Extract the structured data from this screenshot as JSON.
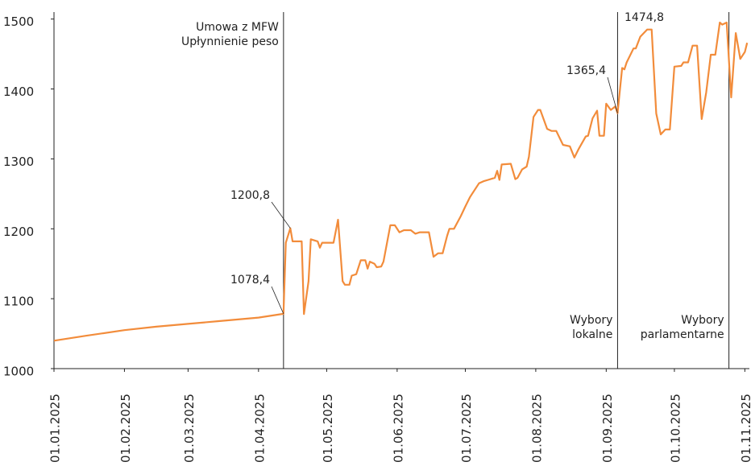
{
  "chart_data": {
    "type": "line",
    "color": "#f28c3b",
    "xlim": [
      "2025-01-01",
      "2025-11-03"
    ],
    "ylim": [
      1000,
      1510
    ],
    "yticks": [
      1000,
      1100,
      1200,
      1300,
      1400,
      1500
    ],
    "xticks": [
      {
        "value": "2025-01-01",
        "label": "01.01.2025"
      },
      {
        "value": "2025-02-01",
        "label": "01.02.2025"
      },
      {
        "value": "2025-03-01",
        "label": "01.03.2025"
      },
      {
        "value": "2025-04-01",
        "label": "01.04.2025"
      },
      {
        "value": "2025-05-01",
        "label": "01.05.2025"
      },
      {
        "value": "2025-06-01",
        "label": "01.06.2025"
      },
      {
        "value": "2025-07-01",
        "label": "01.07.2025"
      },
      {
        "value": "2025-08-01",
        "label": "01.08.2025"
      },
      {
        "value": "2025-09-01",
        "label": "01.09.2025"
      },
      {
        "value": "2025-10-01",
        "label": "01.10.2025"
      },
      {
        "value": "2025-11-01",
        "label": "01.11.2025"
      }
    ],
    "x": [
      "2025-01-01",
      "2025-01-15",
      "2025-02-01",
      "2025-02-15",
      "2025-03-01",
      "2025-03-15",
      "2025-04-01",
      "2025-04-12",
      "2025-04-13",
      "2025-04-15",
      "2025-04-16",
      "2025-04-20",
      "2025-04-21",
      "2025-04-23",
      "2025-04-24",
      "2025-04-27",
      "2025-04-28",
      "2025-04-29",
      "2025-05-04",
      "2025-05-06",
      "2025-05-08",
      "2025-05-09",
      "2025-05-11",
      "2025-05-12",
      "2025-05-14",
      "2025-05-16",
      "2025-05-18",
      "2025-05-19",
      "2025-05-20",
      "2025-05-22",
      "2025-05-23",
      "2025-05-25",
      "2025-05-26",
      "2025-05-29",
      "2025-05-31",
      "2025-06-02",
      "2025-06-04",
      "2025-06-07",
      "2025-06-09",
      "2025-06-11",
      "2025-06-15",
      "2025-06-17",
      "2025-06-19",
      "2025-06-21",
      "2025-06-23",
      "2025-06-24",
      "2025-06-26",
      "2025-06-29",
      "2025-07-01",
      "2025-07-03",
      "2025-07-04",
      "2025-07-07",
      "2025-07-09",
      "2025-07-11",
      "2025-07-14",
      "2025-07-15",
      "2025-07-16",
      "2025-07-17",
      "2025-07-21",
      "2025-07-23",
      "2025-07-24",
      "2025-07-26",
      "2025-07-28",
      "2025-07-29",
      "2025-07-31",
      "2025-08-02",
      "2025-08-03",
      "2025-08-06",
      "2025-08-08",
      "2025-08-10",
      "2025-08-13",
      "2025-08-16",
      "2025-08-18",
      "2025-08-20",
      "2025-08-23",
      "2025-08-24",
      "2025-08-26",
      "2025-08-28",
      "2025-08-29",
      "2025-08-31",
      "2025-09-01",
      "2025-09-03",
      "2025-09-05",
      "2025-09-06",
      "2025-09-08",
      "2025-09-09",
      "2025-09-10",
      "2025-09-13",
      "2025-09-14",
      "2025-09-16",
      "2025-09-19",
      "2025-09-21",
      "2025-09-23",
      "2025-09-25",
      "2025-09-27",
      "2025-09-29",
      "2025-10-01",
      "2025-10-04",
      "2025-10-05",
      "2025-10-07",
      "2025-10-09",
      "2025-10-11",
      "2025-10-13",
      "2025-10-15",
      "2025-10-17",
      "2025-10-19",
      "2025-10-21",
      "2025-10-22",
      "2025-10-24",
      "2025-10-26",
      "2025-10-28",
      "2025-10-30",
      "2025-11-01",
      "2025-11-02"
    ],
    "values": [
      1040,
      1047,
      1055,
      1060,
      1064,
      1068,
      1073,
      1078.4,
      1180,
      1200.8,
      1182,
      1182,
      1078,
      1125,
      1185,
      1182,
      1173,
      1180,
      1180,
      1213,
      1125,
      1120,
      1120,
      1133,
      1135,
      1155,
      1155,
      1143,
      1153,
      1150,
      1145,
      1146,
      1153,
      1205,
      1205,
      1195,
      1198,
      1198,
      1193,
      1195,
      1195,
      1160,
      1165,
      1165,
      1190,
      1200,
      1200,
      1218,
      1232,
      1245,
      1250,
      1265,
      1268,
      1270,
      1273,
      1283,
      1270,
      1292,
      1293,
      1271,
      1273,
      1285,
      1289,
      1303,
      1360,
      1370,
      1370,
      1343,
      1340,
      1340,
      1320,
      1318,
      1302,
      1315,
      1332,
      1333,
      1358,
      1369,
      1333,
      1333,
      1379,
      1370,
      1375,
      1365.4,
      1430,
      1428,
      1438,
      1458,
      1458,
      1474.8,
      1485,
      1485,
      1365,
      1335,
      1342,
      1342,
      1432,
      1433,
      1438,
      1438,
      1462,
      1462,
      1357,
      1395,
      1449,
      1449,
      1495,
      1492,
      1495,
      1388,
      1480,
      1443,
      1453,
      1466
    ],
    "events": [
      {
        "x": "2025-04-12",
        "lines": [
          "Umowa z MFW",
          "Upłynnienie peso"
        ]
      },
      {
        "x": "2025-09-06",
        "lines": [
          "Wybory",
          "lokalne"
        ]
      },
      {
        "x": "2025-10-25",
        "lines": [
          "Wybory",
          "parlamentarne"
        ]
      }
    ],
    "annotations": [
      {
        "x": "2025-04-12",
        "value": 1078.4,
        "label": "1078,4"
      },
      {
        "x": "2025-04-15",
        "value": 1200.8,
        "label": "1200,8"
      },
      {
        "x": "2025-09-06",
        "value": 1365.4,
        "label": "1365,4"
      },
      {
        "x": "2025-09-16",
        "value": 1474.8,
        "label": "1474,8"
      }
    ]
  }
}
